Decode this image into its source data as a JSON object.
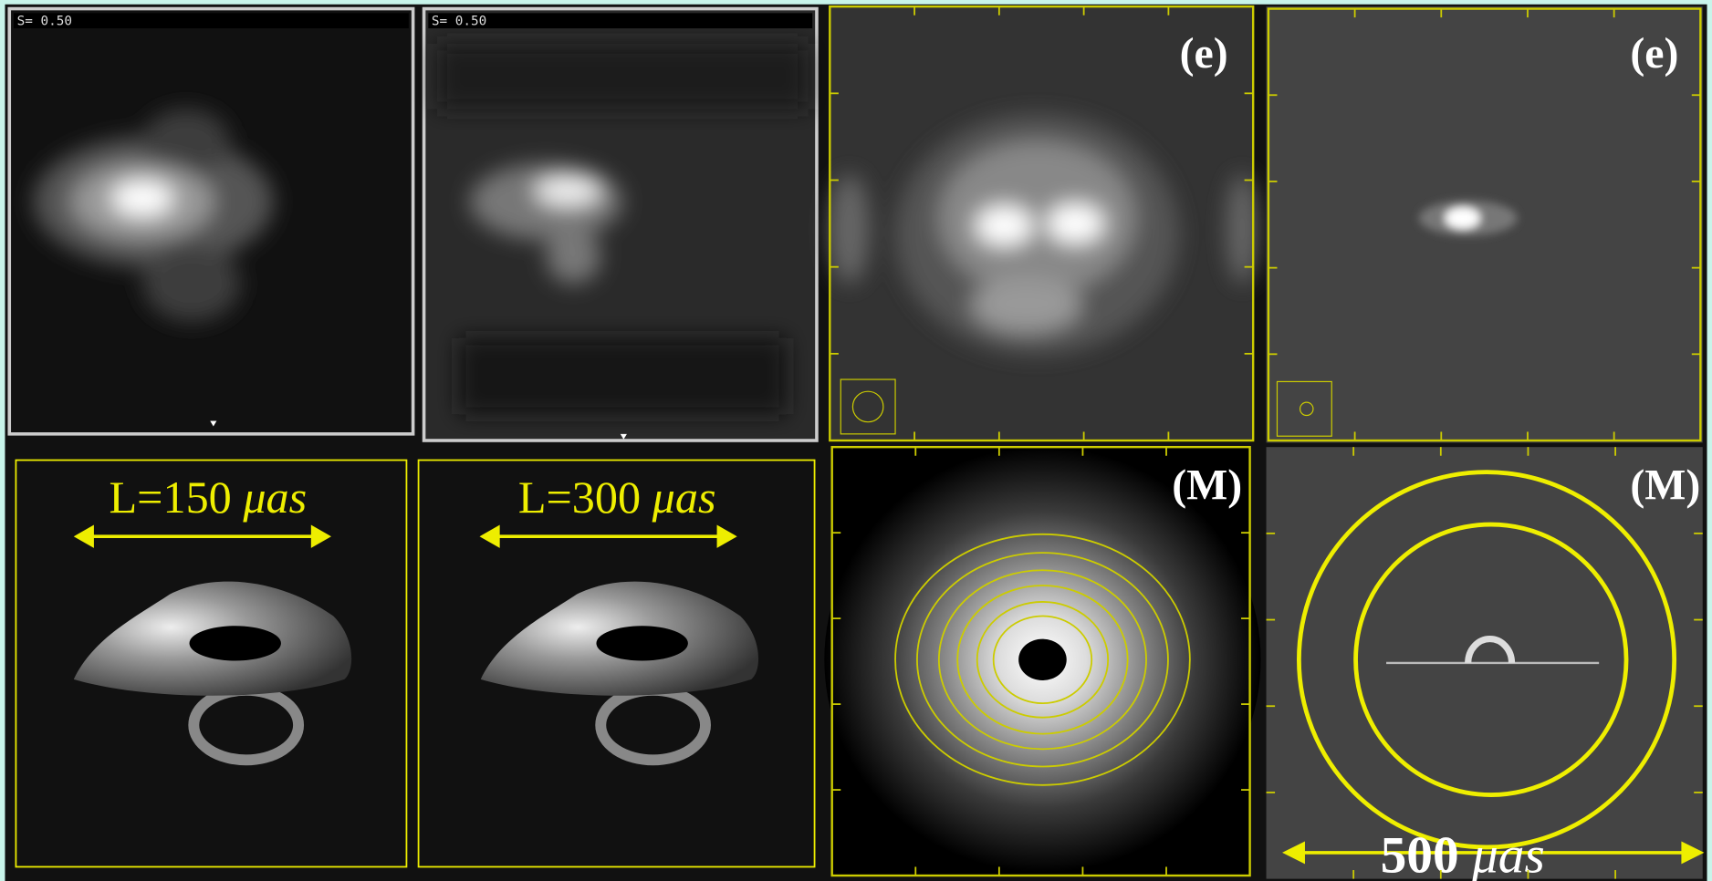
{
  "top_row": [
    {
      "label": "S= 0.50"
    },
    {
      "label": "S= 0.50"
    },
    {
      "label": "(e)"
    },
    {
      "label": "(e)"
    }
  ],
  "bottom_row": [
    {
      "size": "L=150",
      "unit": "μas"
    },
    {
      "size": "L=300",
      "unit": "μas"
    },
    {
      "label": "(M)"
    },
    {
      "label": "(M)",
      "scale": "500",
      "unit": "μas"
    }
  ]
}
